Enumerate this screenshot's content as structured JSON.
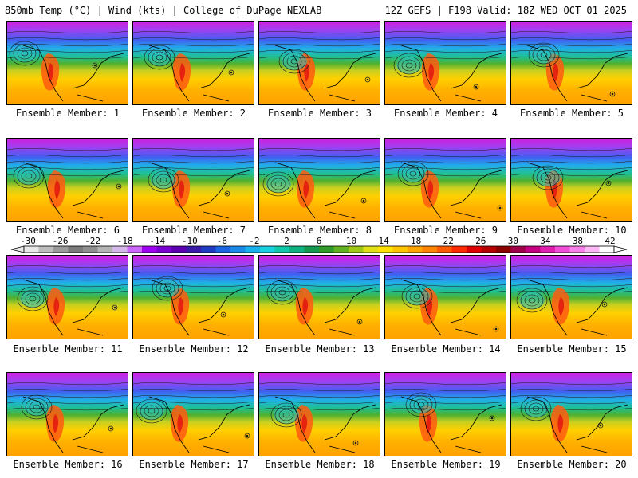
{
  "header": {
    "title_left": "850mb Temp (°C) | Wind (kts) | College of DuPage NEXLAB",
    "title_right": "12Z GEFS | F198 Valid: 18Z WED OCT 01 2025"
  },
  "members": [
    {
      "label": "Ensemble Member: 1"
    },
    {
      "label": "Ensemble Member: 2"
    },
    {
      "label": "Ensemble Member: 3"
    },
    {
      "label": "Ensemble Member: 4"
    },
    {
      "label": "Ensemble Member: 5"
    },
    {
      "label": "Ensemble Member: 6"
    },
    {
      "label": "Ensemble Member: 7"
    },
    {
      "label": "Ensemble Member: 8"
    },
    {
      "label": "Ensemble Member: 9"
    },
    {
      "label": "Ensemble Member: 10"
    },
    {
      "label": "Ensemble Member: 11"
    },
    {
      "label": "Ensemble Member: 12"
    },
    {
      "label": "Ensemble Member: 13"
    },
    {
      "label": "Ensemble Member: 14"
    },
    {
      "label": "Ensemble Member: 15"
    },
    {
      "label": "Ensemble Member: 16"
    },
    {
      "label": "Ensemble Member: 17"
    },
    {
      "label": "Ensemble Member: 18"
    },
    {
      "label": "Ensemble Member: 19"
    },
    {
      "label": "Ensemble Member: 20"
    }
  ],
  "colorbar": {
    "labels": [
      "-30",
      "-26",
      "-22",
      "-18",
      "-14",
      "-10",
      "-6",
      "-2",
      "2",
      "6",
      "10",
      "14",
      "18",
      "22",
      "26",
      "30",
      "34",
      "38",
      "42"
    ],
    "colors": [
      "#e8e8e8",
      "#bdbdbd",
      "#9a9a9a",
      "#7a7a7a",
      "#8e8e8e",
      "#b4b4b4",
      "#d4b8e8",
      "#cc66ff",
      "#a000f0",
      "#7a00d0",
      "#5c00b0",
      "#3a1aa8",
      "#1f3cc0",
      "#1a66e0",
      "#1a8ae8",
      "#1ab0f0",
      "#1ad0e0",
      "#10c8a8",
      "#10b080",
      "#149a50",
      "#2e9a28",
      "#60b020",
      "#a0c818",
      "#e0e018",
      "#ffe000",
      "#ffc400",
      "#ffa400",
      "#ff8400",
      "#ff5a00",
      "#ff2a00",
      "#e00000",
      "#b40000",
      "#8a0000",
      "#a0004a",
      "#c40080",
      "#e020b0",
      "#f050d8",
      "#f880e8",
      "#fcb8f4",
      "#ffffff"
    ]
  }
}
